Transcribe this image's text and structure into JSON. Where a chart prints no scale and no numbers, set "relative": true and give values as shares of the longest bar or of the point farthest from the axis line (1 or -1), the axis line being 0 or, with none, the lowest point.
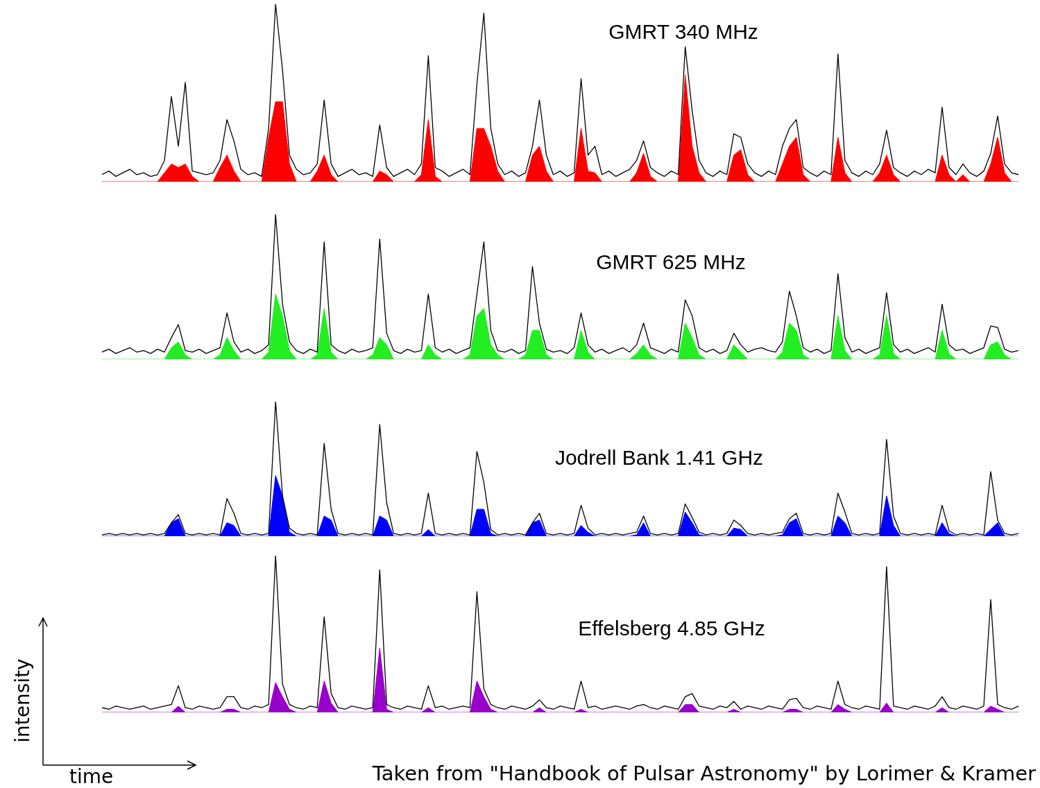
{
  "chart_data": [
    {
      "type": "area",
      "relative": true,
      "title": "GMRT 340 MHz",
      "categories": [
        null,
        null,
        null,
        null,
        null,
        null,
        null,
        null,
        null,
        null,
        null,
        null,
        null,
        null,
        null,
        null,
        null,
        null,
        null,
        null,
        null,
        null,
        null,
        null,
        null,
        null,
        null,
        null,
        null,
        null,
        null,
        null,
        null,
        null,
        null,
        null,
        null,
        null,
        null,
        null,
        null,
        null,
        null,
        null,
        null,
        null,
        null,
        null,
        null,
        null,
        null,
        null,
        null,
        null,
        null,
        null,
        null,
        null,
        null,
        null,
        null,
        null,
        null,
        null,
        null,
        null,
        null,
        null,
        null,
        null,
        null,
        null,
        null,
        null,
        null,
        null,
        null,
        null,
        null,
        null,
        null,
        null,
        null,
        null,
        null,
        null,
        null,
        null,
        null,
        null,
        null,
        null,
        null,
        null,
        null,
        null,
        null,
        null,
        null,
        null,
        null,
        null,
        null,
        null,
        null,
        null,
        null,
        null,
        null,
        null,
        null,
        null,
        null,
        null,
        null,
        null,
        null,
        null,
        null,
        null,
        null,
        null,
        null,
        null,
        null,
        null,
        null,
        null,
        null,
        null,
        null,
        null,
        null
      ],
      "series": [
        {
          "type": "line",
          "color": "#000000",
          "values": [
            0.04,
            0.06,
            0.03,
            0.05,
            0.07,
            0.04,
            0.05,
            0.03,
            0.04,
            0.12,
            0.48,
            0.2,
            0.56,
            0.06,
            0.05,
            0.04,
            0.05,
            0.12,
            0.35,
            0.23,
            0.07,
            0.04,
            0.05,
            0.03,
            0.3,
            1,
            0.63,
            0.15,
            0.07,
            0.04,
            0.05,
            0.1,
            0.46,
            0.1,
            0.03,
            0.05,
            0.07,
            0.04,
            0.05,
            0.03,
            0.32,
            0.08,
            0.03,
            0.05,
            0.07,
            0.04,
            0.1,
            0.71,
            0.08,
            0.06,
            0.03,
            0.05,
            0.07,
            0.04,
            0.55,
            0.95,
            0.3,
            0.1,
            0.04,
            0.06,
            0.03,
            0.05,
            0.2,
            0.46,
            0.15,
            0.04,
            0.06,
            0.03,
            0.05,
            0.58,
            0.15,
            0.2,
            0.04,
            0.06,
            0.03,
            0.05,
            0.07,
            0.12,
            0.23,
            0.08,
            0.05,
            0.03,
            0.06,
            0.04,
            0.76,
            0.4,
            0.12,
            0.05,
            0.03,
            0.06,
            0.04,
            0.27,
            0.25,
            0.1,
            0.05,
            0.03,
            0.06,
            0.04,
            0.2,
            0.3,
            0.35,
            0.08,
            0.05,
            0.03,
            0.06,
            0.04,
            0.72,
            0.12,
            0.05,
            0.03,
            0.06,
            0.04,
            0.1,
            0.29,
            0.08,
            0.05,
            0.03,
            0.06,
            0.04,
            0.07,
            0.05,
            0.42,
            0.08,
            0.04,
            0.1,
            0.05,
            0.03,
            0.06,
            0.16,
            0.37,
            0.1,
            0.05,
            0.04
          ]
        },
        {
          "type": "area",
          "color": "#ff0000",
          "values": [
            0,
            0,
            0,
            0,
            0,
            0,
            0,
            0,
            0,
            0.05,
            0.1,
            0.08,
            0.1,
            0.03,
            0,
            0,
            0,
            0.08,
            0.15,
            0.06,
            0,
            0,
            0,
            0,
            0.25,
            0.45,
            0.45,
            0.1,
            0,
            0,
            0,
            0.06,
            0.15,
            0.04,
            0,
            0,
            0,
            0,
            0,
            0,
            0.06,
            0.04,
            0,
            0,
            0,
            0,
            0.04,
            0.35,
            0.03,
            0,
            0,
            0,
            0,
            0,
            0.3,
            0.3,
            0.2,
            0.06,
            0,
            0,
            0,
            0,
            0.15,
            0.2,
            0.06,
            0,
            0,
            0,
            0,
            0.3,
            0.06,
            0.05,
            0,
            0,
            0,
            0,
            0,
            0.05,
            0.16,
            0.03,
            0,
            0,
            0,
            0,
            0.6,
            0.2,
            0.05,
            0,
            0,
            0,
            0,
            0.15,
            0.18,
            0.04,
            0,
            0,
            0,
            0,
            0.1,
            0.2,
            0.25,
            0.04,
            0,
            0,
            0,
            0,
            0.25,
            0.05,
            0,
            0,
            0,
            0,
            0.05,
            0.15,
            0.04,
            0,
            0,
            0,
            0,
            0,
            0,
            0.15,
            0.04,
            0,
            0.04,
            0,
            0,
            0,
            0.1,
            0.25,
            0.05,
            0,
            0
          ]
        }
      ]
    },
    {
      "type": "area",
      "relative": true,
      "title": "GMRT 625 MHz",
      "categories": [
        null,
        null,
        null,
        null,
        null,
        null,
        null,
        null,
        null,
        null,
        null,
        null,
        null,
        null,
        null,
        null,
        null,
        null,
        null,
        null,
        null,
        null,
        null,
        null,
        null,
        null,
        null,
        null,
        null,
        null,
        null,
        null,
        null,
        null,
        null,
        null,
        null,
        null,
        null,
        null,
        null,
        null,
        null,
        null,
        null,
        null,
        null,
        null,
        null,
        null,
        null,
        null,
        null,
        null,
        null,
        null,
        null,
        null,
        null,
        null,
        null,
        null,
        null,
        null,
        null,
        null,
        null,
        null,
        null,
        null,
        null,
        null,
        null,
        null,
        null,
        null,
        null,
        null,
        null,
        null,
        null,
        null,
        null,
        null,
        null,
        null,
        null,
        null,
        null,
        null,
        null,
        null,
        null,
        null,
        null,
        null,
        null,
        null,
        null,
        null,
        null,
        null,
        null,
        null,
        null,
        null,
        null,
        null,
        null,
        null,
        null,
        null,
        null,
        null,
        null,
        null,
        null,
        null,
        null,
        null,
        null,
        null,
        null,
        null,
        null,
        null,
        null,
        null,
        null,
        null,
        null,
        null,
        null
      ],
      "series": [
        {
          "type": "line",
          "color": "#000000",
          "values": [
            0.05,
            0.07,
            0.04,
            0.06,
            0.08,
            0.05,
            0.06,
            0.04,
            0.07,
            0.05,
            0.15,
            0.24,
            0.06,
            0.05,
            0.07,
            0.04,
            0.06,
            0.08,
            0.32,
            0.12,
            0.05,
            0.07,
            0.04,
            0.06,
            0.1,
            1,
            0.38,
            0.12,
            0.06,
            0.04,
            0.07,
            0.05,
            0.81,
            0.1,
            0.06,
            0.04,
            0.07,
            0.05,
            0.06,
            0.08,
            0.83,
            0.18,
            0.06,
            0.04,
            0.07,
            0.05,
            0.06,
            0.45,
            0.08,
            0.05,
            0.07,
            0.04,
            0.06,
            0.08,
            0.45,
            0.81,
            0.2,
            0.06,
            0.05,
            0.07,
            0.04,
            0.06,
            0.64,
            0.25,
            0.07,
            0.05,
            0.06,
            0.04,
            0.08,
            0.32,
            0.1,
            0.05,
            0.07,
            0.04,
            0.06,
            0.08,
            0.05,
            0.1,
            0.25,
            0.08,
            0.06,
            0.04,
            0.07,
            0.05,
            0.41,
            0.3,
            0.08,
            0.05,
            0.07,
            0.04,
            0.06,
            0.18,
            0.1,
            0.05,
            0.07,
            0.08,
            0.06,
            0.05,
            0.12,
            0.47,
            0.3,
            0.08,
            0.05,
            0.07,
            0.04,
            0.06,
            0.59,
            0.15,
            0.05,
            0.07,
            0.04,
            0.06,
            0.08,
            0.46,
            0.1,
            0.05,
            0.07,
            0.04,
            0.06,
            0.08,
            0.05,
            0.38,
            0.1,
            0.06,
            0.07,
            0.04,
            0.06,
            0.08,
            0.23,
            0.22,
            0.07,
            0.05,
            0.06
          ]
        },
        {
          "type": "area",
          "color": "#22ee22",
          "values": [
            0,
            0,
            0,
            0,
            0,
            0,
            0,
            0,
            0,
            0,
            0.08,
            0.12,
            0.03,
            0,
            0,
            0,
            0,
            0.03,
            0.15,
            0.06,
            0,
            0,
            0,
            0,
            0.05,
            0.45,
            0.3,
            0.06,
            0,
            0,
            0,
            0.03,
            0.35,
            0.05,
            0,
            0,
            0,
            0,
            0,
            0.03,
            0.15,
            0.1,
            0,
            0,
            0,
            0,
            0,
            0.1,
            0.03,
            0,
            0,
            0,
            0,
            0.03,
            0.3,
            0.35,
            0.1,
            0.03,
            0,
            0,
            0,
            0.03,
            0.2,
            0.2,
            0.03,
            0,
            0,
            0,
            0,
            0.2,
            0.05,
            0,
            0,
            0,
            0,
            0,
            0,
            0.04,
            0.1,
            0.03,
            0,
            0,
            0,
            0,
            0.25,
            0.15,
            0.03,
            0,
            0,
            0,
            0,
            0.1,
            0.05,
            0,
            0,
            0,
            0,
            0,
            0.05,
            0.25,
            0.2,
            0.03,
            0,
            0,
            0,
            0,
            0.3,
            0.06,
            0,
            0,
            0,
            0,
            0.03,
            0.3,
            0.04,
            0,
            0,
            0,
            0,
            0,
            0,
            0.2,
            0.04,
            0,
            0,
            0,
            0,
            0,
            0.1,
            0.12,
            0.03,
            0,
            0
          ]
        }
      ]
    },
    {
      "type": "area",
      "relative": true,
      "title": "Jodrell Bank 1.41 GHz",
      "categories": [
        null,
        null,
        null,
        null,
        null,
        null,
        null,
        null,
        null,
        null,
        null,
        null,
        null,
        null,
        null,
        null,
        null,
        null,
        null,
        null,
        null,
        null,
        null,
        null,
        null,
        null,
        null,
        null,
        null,
        null,
        null,
        null,
        null,
        null,
        null,
        null,
        null,
        null,
        null,
        null,
        null,
        null,
        null,
        null,
        null,
        null,
        null,
        null,
        null,
        null,
        null,
        null,
        null,
        null,
        null,
        null,
        null,
        null,
        null,
        null,
        null,
        null,
        null,
        null,
        null,
        null,
        null,
        null,
        null,
        null,
        null,
        null,
        null,
        null,
        null,
        null,
        null,
        null,
        null,
        null,
        null,
        null,
        null,
        null,
        null,
        null,
        null,
        null,
        null,
        null,
        null,
        null,
        null,
        null,
        null,
        null,
        null,
        null,
        null,
        null,
        null,
        null,
        null,
        null,
        null,
        null,
        null,
        null,
        null,
        null,
        null,
        null,
        null,
        null,
        null,
        null,
        null,
        null,
        null,
        null,
        null,
        null,
        null,
        null,
        null,
        null,
        null,
        null,
        null,
        null,
        null,
        null,
        null
      ],
      "series": [
        {
          "type": "line",
          "color": "#000000",
          "values": [
            0.01,
            0.02,
            0.01,
            0.02,
            0.01,
            0.02,
            0.01,
            0.02,
            0.01,
            0.02,
            0.1,
            0.16,
            0.02,
            0.01,
            0.02,
            0.01,
            0.02,
            0.01,
            0.28,
            0.17,
            0.02,
            0.01,
            0.02,
            0.01,
            0.02,
            1,
            0.3,
            0.06,
            0.02,
            0.01,
            0.02,
            0.01,
            0.69,
            0.2,
            0.02,
            0.01,
            0.02,
            0.01,
            0.02,
            0.01,
            0.83,
            0.25,
            0.02,
            0.01,
            0.02,
            0.01,
            0.02,
            0.32,
            0.02,
            0.01,
            0.02,
            0.01,
            0.02,
            0.01,
            0.63,
            0.4,
            0.05,
            0.01,
            0.02,
            0.01,
            0.02,
            0.01,
            0.1,
            0.17,
            0.02,
            0.01,
            0.02,
            0.01,
            0.02,
            0.23,
            0.06,
            0.01,
            0.02,
            0.01,
            0.02,
            0.01,
            0.02,
            0.03,
            0.15,
            0.02,
            0.01,
            0.02,
            0.01,
            0.02,
            0.24,
            0.14,
            0.03,
            0.01,
            0.02,
            0.01,
            0.02,
            0.12,
            0.08,
            0.02,
            0.01,
            0.02,
            0.01,
            0.02,
            0.03,
            0.13,
            0.17,
            0.02,
            0.01,
            0.02,
            0.01,
            0.02,
            0.32,
            0.18,
            0.02,
            0.01,
            0.02,
            0.01,
            0.02,
            0.72,
            0.15,
            0.02,
            0.01,
            0.02,
            0.01,
            0.02,
            0.01,
            0.23,
            0.04,
            0.01,
            0.02,
            0.01,
            0.02,
            0.01,
            0.48,
            0.12,
            0.02,
            0.01,
            0.02
          ]
        },
        {
          "type": "area",
          "color": "#0000ff",
          "values": [
            0,
            0,
            0,
            0,
            0,
            0,
            0,
            0,
            0,
            0,
            0.1,
            0.13,
            0,
            0,
            0,
            0,
            0,
            0,
            0.1,
            0.08,
            0,
            0,
            0,
            0,
            0,
            0.45,
            0.3,
            0.03,
            0,
            0,
            0,
            0,
            0.15,
            0.12,
            0,
            0,
            0,
            0,
            0,
            0,
            0.15,
            0.12,
            0,
            0,
            0,
            0,
            0,
            0.05,
            0,
            0,
            0,
            0,
            0,
            0,
            0.2,
            0.2,
            0.02,
            0,
            0,
            0,
            0,
            0,
            0.1,
            0.12,
            0,
            0,
            0,
            0,
            0,
            0.08,
            0.03,
            0,
            0,
            0,
            0,
            0,
            0,
            0.01,
            0.1,
            0,
            0,
            0,
            0,
            0,
            0.18,
            0.1,
            0.01,
            0,
            0,
            0,
            0,
            0.06,
            0.05,
            0,
            0,
            0,
            0,
            0,
            0.01,
            0.1,
            0.13,
            0,
            0,
            0,
            0,
            0,
            0.15,
            0.1,
            0,
            0,
            0,
            0,
            0,
            0.3,
            0.08,
            0,
            0,
            0,
            0,
            0,
            0,
            0.1,
            0.02,
            0,
            0,
            0,
            0,
            0,
            0.05,
            0.1,
            0,
            0,
            0
          ]
        }
      ]
    },
    {
      "type": "area",
      "relative": true,
      "title": "Effelsberg 4.85 GHz",
      "xlabel": "time",
      "ylabel": "intensity",
      "annotations": [
        "Taken from \"Handbook of Pulsar Astronomy\" by Lorimer & Kramer"
      ],
      "categories": [
        null,
        null,
        null,
        null,
        null,
        null,
        null,
        null,
        null,
        null,
        null,
        null,
        null,
        null,
        null,
        null,
        null,
        null,
        null,
        null,
        null,
        null,
        null,
        null,
        null,
        null,
        null,
        null,
        null,
        null,
        null,
        null,
        null,
        null,
        null,
        null,
        null,
        null,
        null,
        null,
        null,
        null,
        null,
        null,
        null,
        null,
        null,
        null,
        null,
        null,
        null,
        null,
        null,
        null,
        null,
        null,
        null,
        null,
        null,
        null,
        null,
        null,
        null,
        null,
        null,
        null,
        null,
        null,
        null,
        null,
        null,
        null,
        null,
        null,
        null,
        null,
        null,
        null,
        null,
        null,
        null,
        null,
        null,
        null,
        null,
        null,
        null,
        null,
        null,
        null,
        null,
        null,
        null,
        null,
        null,
        null,
        null,
        null,
        null,
        null,
        null,
        null,
        null,
        null,
        null,
        null,
        null,
        null,
        null,
        null,
        null,
        null,
        null,
        null,
        null,
        null,
        null,
        null,
        null,
        null,
        null,
        null,
        null,
        null,
        null,
        null,
        null,
        null,
        null,
        null,
        null,
        null,
        null
      ],
      "series": [
        {
          "type": "line",
          "color": "#000000",
          "values": [
            0.03,
            0.02,
            0.04,
            0.03,
            0.02,
            0.03,
            0.04,
            0.02,
            0.03,
            0.04,
            0.05,
            0.17,
            0.03,
            0.02,
            0.04,
            0.03,
            0.02,
            0.03,
            0.1,
            0.1,
            0.03,
            0.02,
            0.04,
            0.03,
            0.05,
            1,
            0.18,
            0.05,
            0.03,
            0.02,
            0.04,
            0.03,
            0.61,
            0.12,
            0.03,
            0.02,
            0.04,
            0.03,
            0.02,
            0.03,
            0.91,
            0.05,
            0.03,
            0.02,
            0.04,
            0.03,
            0.02,
            0.17,
            0.03,
            0.04,
            0.02,
            0.03,
            0.04,
            0.03,
            0.77,
            0.15,
            0.05,
            0.03,
            0.02,
            0.04,
            0.03,
            0.02,
            0.04,
            0.08,
            0.03,
            0.02,
            0.04,
            0.03,
            0.02,
            0.2,
            0.03,
            0.04,
            0.02,
            0.03,
            0.04,
            0.03,
            0.02,
            0.04,
            0.05,
            0.03,
            0.02,
            0.04,
            0.03,
            0.02,
            0.1,
            0.12,
            0.04,
            0.03,
            0.02,
            0.04,
            0.03,
            0.07,
            0.02,
            0.04,
            0.03,
            0.02,
            0.04,
            0.03,
            0.02,
            0.08,
            0.09,
            0.03,
            0.02,
            0.04,
            0.03,
            0.02,
            0.2,
            0.05,
            0.03,
            0.02,
            0.04,
            0.03,
            0.02,
            0.93,
            0.04,
            0.03,
            0.02,
            0.04,
            0.03,
            0.02,
            0.04,
            0.1,
            0.03,
            0.02,
            0.04,
            0.03,
            0.02,
            0.04,
            0.72,
            0.05,
            0.03,
            0.02,
            0.04
          ]
        },
        {
          "type": "area",
          "color": "#9900cc",
          "values": [
            0,
            0,
            0,
            0,
            0,
            0,
            0,
            0,
            0,
            0,
            0,
            0.04,
            0,
            0,
            0,
            0,
            0,
            0,
            0.02,
            0.02,
            0,
            0,
            0,
            0,
            0,
            0.19,
            0.1,
            0.02,
            0,
            0,
            0,
            0,
            0.2,
            0.06,
            0,
            0,
            0,
            0,
            0,
            0,
            0.41,
            0.02,
            0,
            0,
            0,
            0,
            0,
            0.03,
            0,
            0,
            0,
            0,
            0,
            0,
            0.2,
            0.1,
            0.02,
            0,
            0,
            0,
            0,
            0,
            0,
            0.03,
            0,
            0,
            0,
            0,
            0,
            0.02,
            0,
            0,
            0,
            0,
            0,
            0,
            0,
            0,
            0,
            0,
            0,
            0,
            0,
            0,
            0.05,
            0.05,
            0,
            0,
            0,
            0,
            0,
            0.02,
            0,
            0,
            0,
            0,
            0,
            0,
            0,
            0.02,
            0.02,
            0,
            0,
            0,
            0,
            0,
            0.05,
            0.02,
            0,
            0,
            0,
            0,
            0,
            0.06,
            0,
            0,
            0,
            0,
            0,
            0,
            0,
            0.03,
            0,
            0,
            0,
            0,
            0,
            0,
            0.04,
            0.02,
            0,
            0,
            0
          ]
        }
      ]
    }
  ]
}
